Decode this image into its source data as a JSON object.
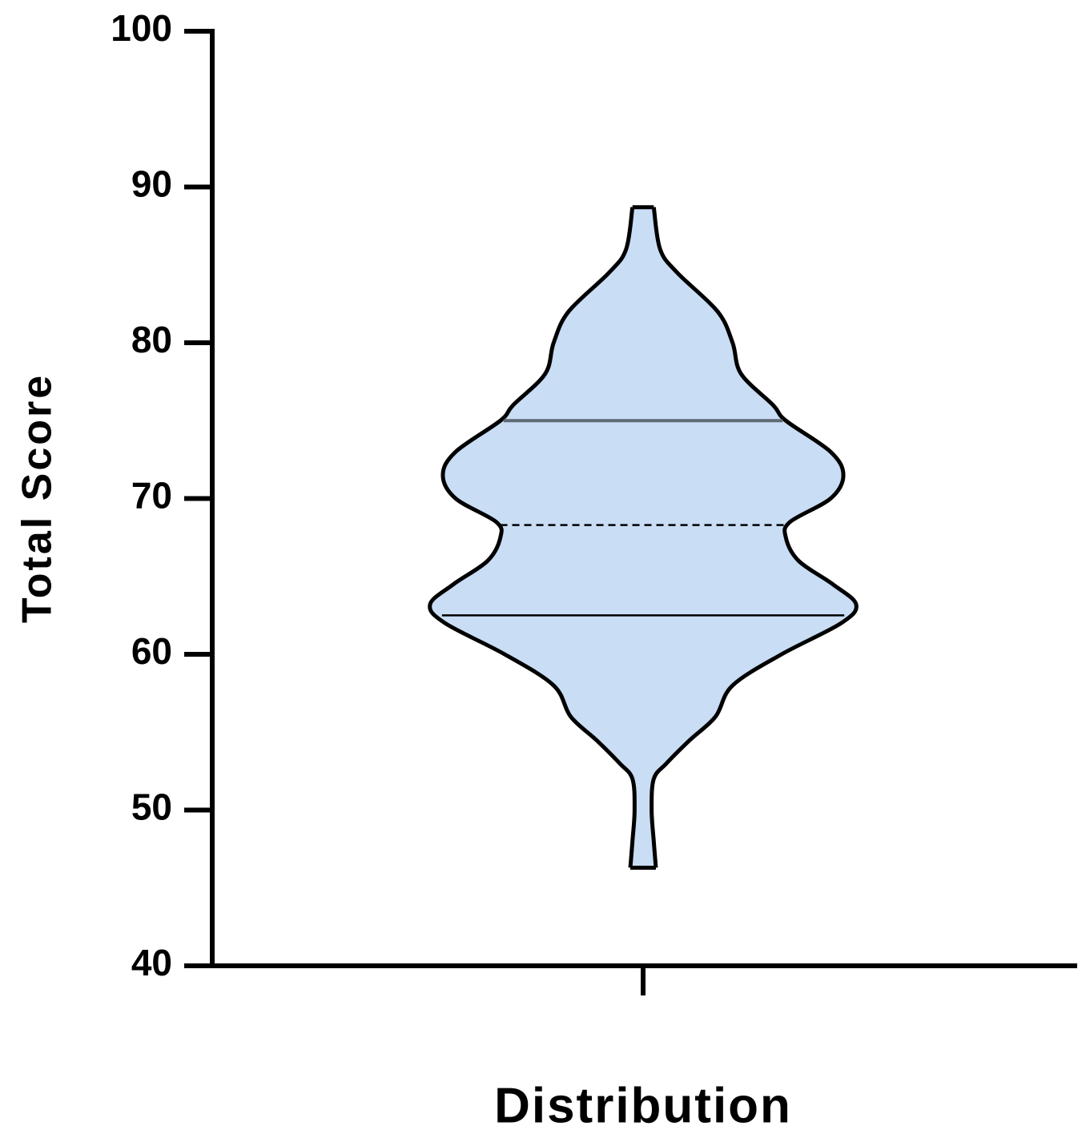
{
  "chart_data": {
    "type": "violin",
    "y_label": "Total Score",
    "x_label": "Distribution",
    "ylim": [
      40,
      100
    ],
    "yticks": [
      40,
      50,
      60,
      70,
      80,
      90,
      100
    ],
    "color": "#c9ddf5",
    "kde": {
      "y": [
        88.7,
        86,
        84.5,
        82,
        80,
        78,
        76,
        75,
        73,
        71.5,
        70,
        68.5,
        67.5,
        66,
        64.5,
        63.2,
        62,
        60,
        58,
        56,
        54.5,
        53,
        52,
        50,
        48,
        46.3
      ],
      "density": [
        0.05,
        0.08,
        0.16,
        0.35,
        0.42,
        0.46,
        0.61,
        0.67,
        0.88,
        0.94,
        0.88,
        0.69,
        0.67,
        0.73,
        0.89,
        1.0,
        0.93,
        0.65,
        0.42,
        0.34,
        0.22,
        0.11,
        0.05,
        0.04,
        0.05,
        0.06
      ]
    },
    "q1": 62.5,
    "median": 68.3,
    "q3": 75
  }
}
